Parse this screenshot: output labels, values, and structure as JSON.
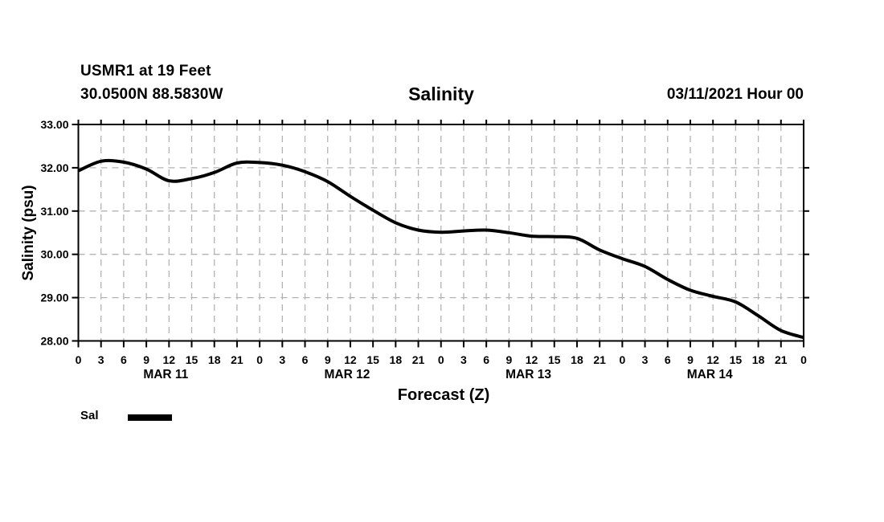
{
  "header": {
    "station_line": "USMR1 at 19 Feet",
    "coords_line": "30.0500N 88.5830W",
    "title": "Salinity",
    "datetime": "03/11/2021 Hour 00"
  },
  "legend": {
    "label": "Sal",
    "swatch_color": "#000000"
  },
  "chart_data": {
    "type": "line",
    "title": "Salinity",
    "xlabel": "Forecast (Z)",
    "ylabel": "Salinity (psu)",
    "ylim": [
      28.0,
      33.0
    ],
    "x_range_hours": [
      0,
      96
    ],
    "x": [
      0,
      3,
      6,
      9,
      12,
      15,
      18,
      21,
      24,
      27,
      30,
      33,
      36,
      39,
      42,
      45,
      48,
      51,
      54,
      57,
      60,
      63,
      66,
      69,
      72,
      75,
      78,
      81,
      84,
      87,
      90,
      93,
      96
    ],
    "series": [
      {
        "name": "Sal",
        "color": "#000000",
        "values": [
          31.93,
          32.15,
          32.13,
          31.97,
          31.7,
          31.75,
          31.89,
          32.11,
          32.12,
          32.06,
          31.91,
          31.68,
          31.34,
          31.02,
          30.73,
          30.56,
          30.51,
          30.54,
          30.56,
          30.5,
          30.42,
          30.41,
          30.37,
          30.1,
          29.9,
          29.72,
          29.42,
          29.17,
          29.03,
          28.9,
          28.58,
          28.24,
          28.08
        ]
      }
    ],
    "ytick_values": [
      33,
      32,
      31,
      30,
      29,
      28
    ],
    "ytick_labels": [
      "33.00",
      "32.00",
      "31.00",
      "30.00",
      "29.00",
      "28.00"
    ],
    "xtick_hours": [
      0,
      3,
      6,
      9,
      12,
      15,
      18,
      21,
      24,
      27,
      30,
      33,
      36,
      39,
      42,
      45,
      48,
      51,
      54,
      57,
      60,
      63,
      66,
      69,
      72,
      75,
      78,
      81,
      84,
      87,
      90,
      93,
      96
    ],
    "xtick_labels": [
      "0",
      "3",
      "6",
      "9",
      "12",
      "15",
      "18",
      "21",
      "0",
      "3",
      "6",
      "9",
      "12",
      "15",
      "18",
      "21",
      "0",
      "3",
      "6",
      "9",
      "12",
      "15",
      "18",
      "21",
      "0",
      "3",
      "6",
      "9",
      "12",
      "15",
      "18",
      "21",
      "0"
    ],
    "day_labels": [
      {
        "label": "MAR 11",
        "hour": 12
      },
      {
        "label": "MAR 12",
        "hour": 36
      },
      {
        "label": "MAR 13",
        "hour": 60
      },
      {
        "label": "MAR 14",
        "hour": 84
      }
    ],
    "grid": {
      "on": true,
      "color": "#b3b3b3",
      "dash": "8,6"
    },
    "axis_color": "#000000",
    "background": "#ffffff",
    "legend_position": "bottom-left"
  }
}
